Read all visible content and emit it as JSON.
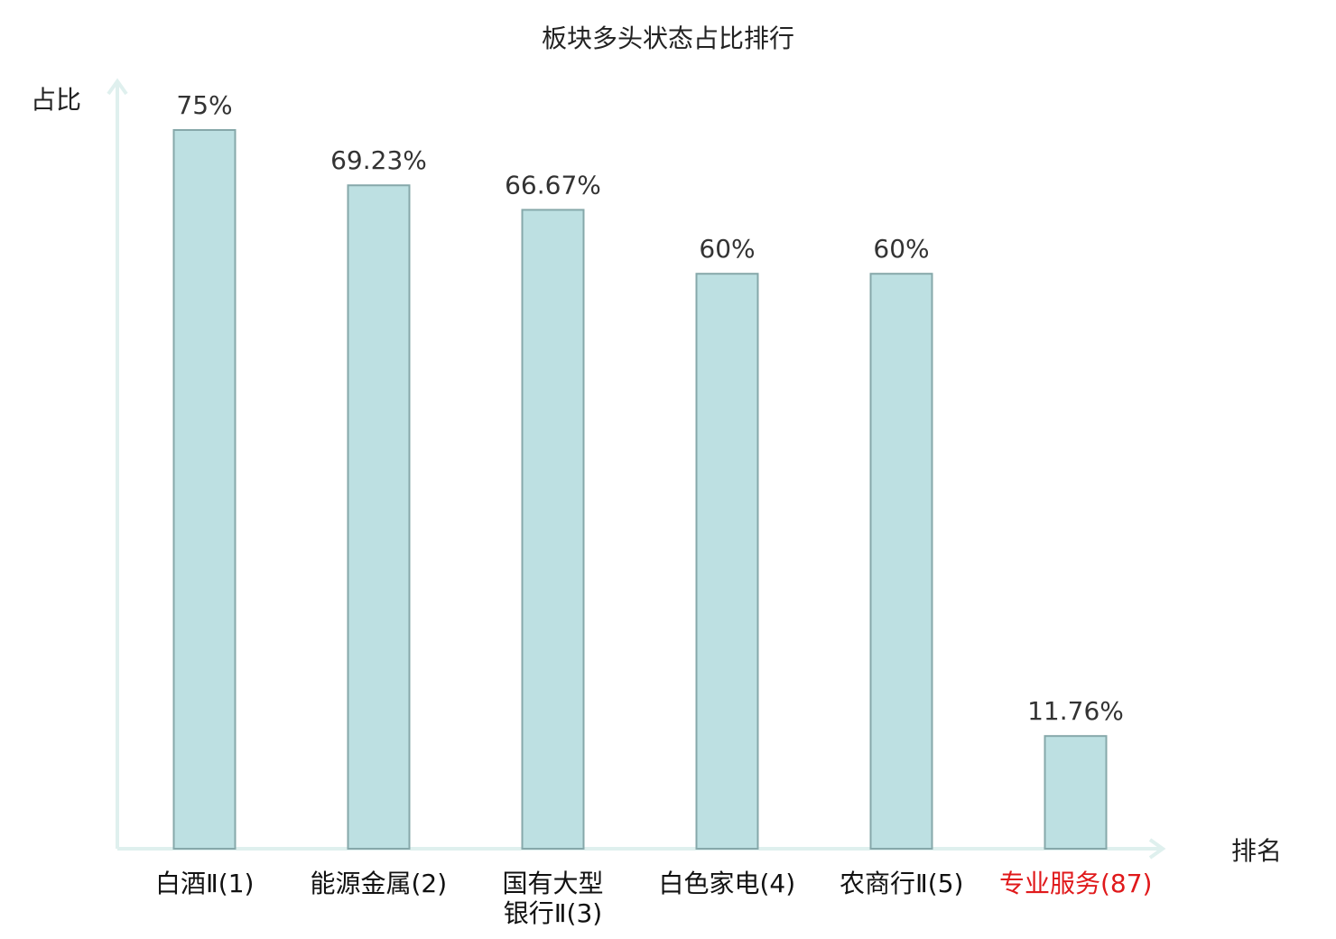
{
  "chart_data": {
    "type": "bar",
    "title": "板块多头状态占比排行",
    "y_label": "占比",
    "x_label": "排名",
    "categories": [
      "白酒Ⅱ(1)",
      "能源金属(2)",
      "国有大型银行Ⅱ(3)",
      "白色家电(4)",
      "农商行Ⅱ(5)",
      "专业服务(87)"
    ],
    "category_colors": [
      "#111111",
      "#111111",
      "#111111",
      "#111111",
      "#111111",
      "#e0191b"
    ],
    "values": [
      75,
      69.23,
      66.67,
      60,
      60,
      11.76
    ],
    "value_labels": [
      "75%",
      "69.23%",
      "66.67%",
      "60%",
      "60%",
      "11.76%"
    ],
    "color": "#bde0e2",
    "edge_color": "#86a8aa"
  }
}
